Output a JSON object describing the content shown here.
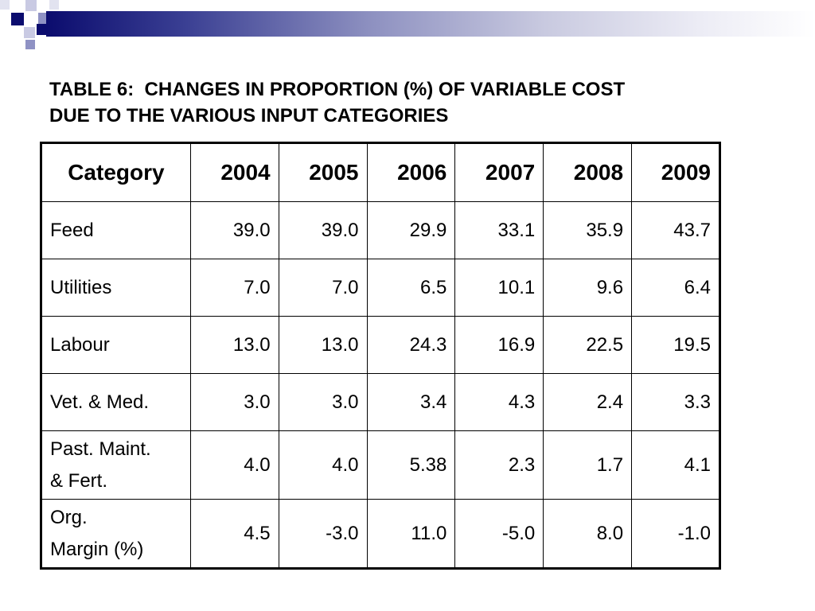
{
  "slide": {
    "title_line1": "TABLE 6:  CHANGES IN PROPORTION (%) OF VARIABLE COST",
    "title_line2": "DUE TO THE VARIOUS INPUT CATEGORIES"
  },
  "colors": {
    "navy": "#0b0c6e",
    "accent_mid": "#8f92c4",
    "accent_light": "#c9cae3",
    "text": "#000000",
    "background": "#ffffff"
  },
  "table": {
    "headers": [
      "Category",
      "2004",
      "2005",
      "2006",
      "2007",
      "2008",
      "2009"
    ],
    "rows": [
      {
        "category": "Feed",
        "values": [
          "39.0",
          "39.0",
          "29.9",
          "33.1",
          "35.9",
          "43.7"
        ]
      },
      {
        "category": "Utilities",
        "values": [
          "7.0",
          "7.0",
          "6.5",
          "10.1",
          "9.6",
          "6.4"
        ]
      },
      {
        "category": "Labour",
        "values": [
          "13.0",
          "13.0",
          "24.3",
          "16.9",
          "22.5",
          "19.5"
        ]
      },
      {
        "category": "Vet. & Med.",
        "values": [
          "3.0",
          "3.0",
          "3.4",
          "4.3",
          "2.4",
          "3.3"
        ]
      },
      {
        "category_line1": "Past. Maint.",
        "category_line2": "& Fert.",
        "values": [
          "4.0",
          "4.0",
          "5.38",
          "2.3",
          "1.7",
          "4.1"
        ]
      },
      {
        "category_line1": "Org.",
        "category_line2": "Margin (%)",
        "values": [
          "4.5",
          "-3.0",
          "11.0",
          "-5.0",
          "8.0",
          "-1.0"
        ]
      }
    ]
  }
}
